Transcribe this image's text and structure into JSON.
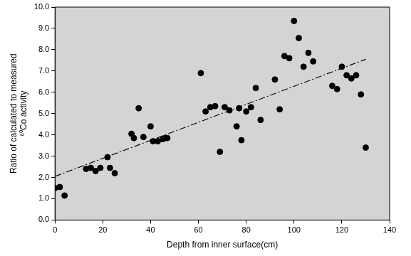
{
  "chart_data": {
    "type": "scatter",
    "xlabel": "Depth from inner surface(cm)",
    "ylabel": [
      "Ratio of calculated to measured",
      "⁶⁰Co activity"
    ],
    "xlim": [
      0,
      140
    ],
    "xticks": [
      0,
      20,
      40,
      60,
      80,
      100,
      120,
      140
    ],
    "ylim": [
      0,
      10
    ],
    "yticks": [
      {
        "value": 0,
        "label": "0.0"
      },
      {
        "value": 1,
        "label": "1.0"
      },
      {
        "value": 2,
        "label": "2.0"
      },
      {
        "value": 3,
        "label": "3.0"
      },
      {
        "value": 4,
        "label": "4.0"
      },
      {
        "value": 5,
        "label": "5.0"
      },
      {
        "value": 6,
        "label": "6.0"
      },
      {
        "value": 7,
        "label": "7.0"
      },
      {
        "value": 8,
        "label": "8.0"
      },
      {
        "value": 9,
        "label": "9.0"
      },
      {
        "value": 10,
        "label": "10.0"
      }
    ],
    "grid": false,
    "series": [
      {
        "type": "scatter",
        "color": "#000000",
        "marker": "circle",
        "x": [
          0,
          2,
          4,
          13,
          15,
          17,
          19,
          22,
          23,
          25,
          32,
          33,
          35,
          37,
          40,
          41,
          43,
          45,
          46,
          47,
          61,
          63,
          65,
          67,
          69,
          71,
          73,
          76,
          77,
          78,
          80,
          82,
          84,
          86,
          92,
          94,
          96,
          98,
          100,
          102,
          104,
          106,
          108,
          116,
          118,
          120,
          122,
          124,
          126,
          128,
          130
        ],
        "values": [
          1.5,
          1.55,
          1.15,
          2.4,
          2.45,
          2.3,
          2.45,
          2.95,
          2.45,
          2.2,
          4.05,
          3.85,
          5.25,
          3.9,
          4.4,
          3.7,
          3.7,
          3.8,
          3.85,
          3.85,
          6.9,
          5.1,
          5.3,
          5.35,
          3.2,
          5.3,
          5.15,
          4.4,
          5.25,
          3.75,
          5.1,
          5.3,
          6.2,
          4.7,
          6.6,
          5.2,
          7.7,
          7.6,
          9.35,
          8.55,
          7.2,
          7.85,
          7.45,
          6.3,
          6.15,
          7.2,
          6.8,
          6.65,
          6.8,
          5.9,
          3.4
        ]
      },
      {
        "type": "line",
        "color": "#000000",
        "line_style": "dashdot",
        "x": [
          0,
          130
        ],
        "values": [
          2.05,
          7.55
        ]
      }
    ]
  }
}
